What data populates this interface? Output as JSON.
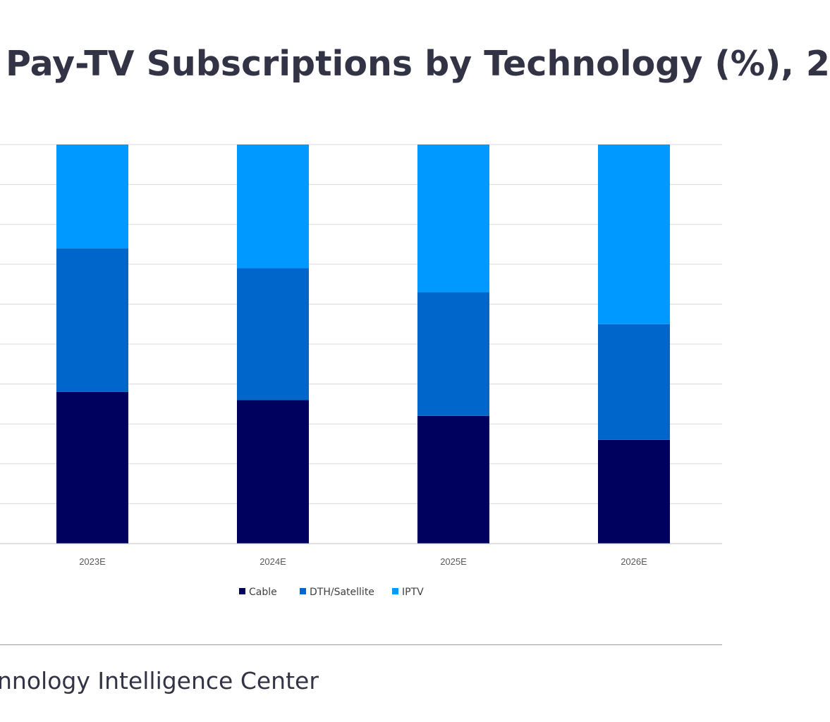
{
  "page": {
    "title": "Pay-TV Subscriptions by Technology (%), 2",
    "source": "nnology Intelligence Center"
  },
  "chart_data": {
    "type": "bar",
    "stacked": true,
    "categories": [
      "2023E",
      "2024E",
      "2025E",
      "2026E"
    ],
    "series": [
      {
        "name": "Cable",
        "color": "#00005f",
        "values": [
          38,
          36,
          32,
          26
        ]
      },
      {
        "name": "DTH/Satellite",
        "color": "#0066cc",
        "values": [
          36,
          33,
          31,
          29
        ]
      },
      {
        "name": "IPTV",
        "color": "#0099ff",
        "values": [
          26,
          31,
          37,
          45
        ]
      }
    ],
    "ylim": [
      0,
      100
    ],
    "grid": true,
    "legend_position": "bottom"
  }
}
